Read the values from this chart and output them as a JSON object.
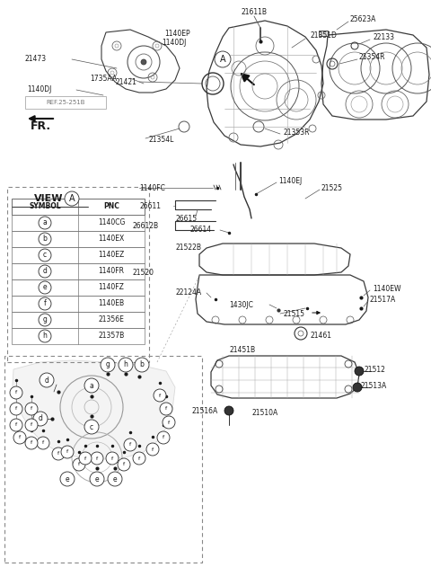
{
  "bg_color": "#ffffff",
  "view_table": {
    "symbols": [
      "a",
      "b",
      "c",
      "d",
      "e",
      "f",
      "g",
      "h"
    ],
    "pncs": [
      "1140CG",
      "1140EX",
      "1140EZ",
      "1140FR",
      "1140FZ",
      "1140EB",
      "21356E",
      "21357B"
    ]
  }
}
